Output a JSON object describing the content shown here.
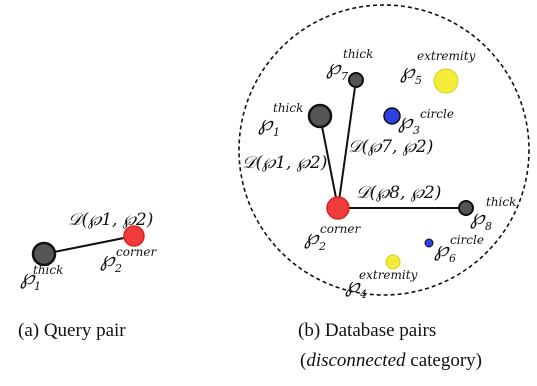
{
  "symbol": "℘",
  "colors": {
    "thick": "#555555",
    "corner": "#ef3b3b",
    "circle": "#2f3fe0",
    "extremity": "#f4ec3a",
    "outline": "#111111"
  },
  "query": {
    "distance": "𝒟(℘1, ℘2)",
    "p1": {
      "sub": "1",
      "sup": "thick"
    },
    "p2": {
      "sub": "2",
      "sup": "corner"
    },
    "caption": "(a) Query pair"
  },
  "database": {
    "d_1_2": "𝒟(℘1, ℘2)",
    "d_7_2": "𝒟(℘7, ℘2)",
    "d_8_2": "𝒟(℘8, ℘2)",
    "p1": {
      "sub": "1",
      "sup": "thick"
    },
    "p2": {
      "sub": "2",
      "sup": "corner"
    },
    "p3": {
      "sub": "3",
      "sup": "circle"
    },
    "p4": {
      "sub": "4",
      "sup": "extremity"
    },
    "p5": {
      "sub": "5",
      "sup": "extremity"
    },
    "p6": {
      "sub": "6",
      "sup": "circle"
    },
    "p7": {
      "sub": "7",
      "sup": "thick"
    },
    "p8": {
      "sub": "8",
      "sup": "thick"
    },
    "caption_line1": "(b) Database pairs",
    "caption_line2_open": "(",
    "caption_line2_italic": "disconnected",
    "caption_line2_rest": " category)"
  }
}
